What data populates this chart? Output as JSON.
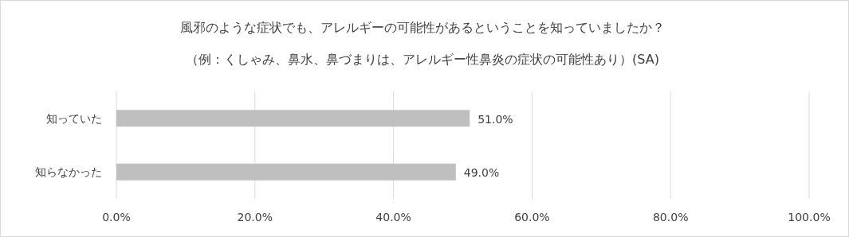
{
  "chart_data": {
    "type": "bar",
    "orientation": "horizontal",
    "title": "風邪のような症状でも、アレルギーの可能性があるということを知っていましたか？",
    "subtitle": "（例：くしゃみ、鼻水、鼻づまりは、アレルギー性鼻炎の症状の可能性あり）(SA)",
    "categories": [
      "知っていた",
      "知らなかった"
    ],
    "values": [
      51.0,
      49.0
    ],
    "value_labels": [
      "51.0%",
      "49.0%"
    ],
    "color": "#bfbfbf",
    "xlim": [
      0,
      100
    ],
    "xticks": [
      {
        "value": 0,
        "label": "0.0%"
      },
      {
        "value": 20,
        "label": "20.0%"
      },
      {
        "value": 40,
        "label": "40.0%"
      },
      {
        "value": 60,
        "label": "60.0%"
      },
      {
        "value": 80,
        "label": "80.0%"
      },
      {
        "value": 100,
        "label": "100.0%"
      }
    ],
    "grid": "x"
  }
}
